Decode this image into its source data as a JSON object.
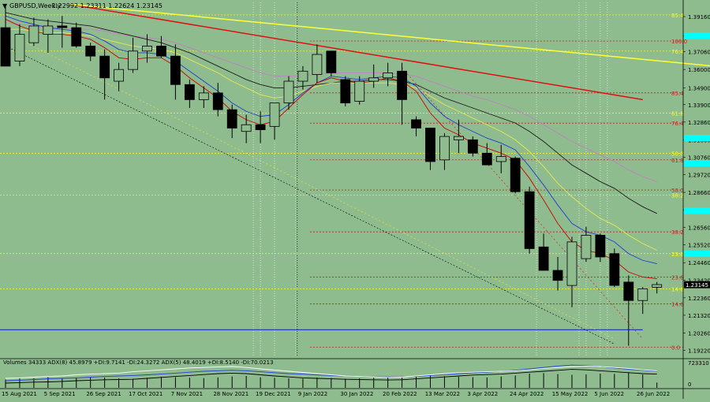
{
  "header": {
    "symbol_label": "GBPUSD,Weekly",
    "ohlc_label": "1.22992 1.23311 1.22624 1.23145"
  },
  "volume_header": "Volumes 34333  ADX(8) 45.8979 +DI:9.7141 -DI:24.3272  ADX(5) 48.4019 +DI:8.5140 -DI:70.0213",
  "colors": {
    "background": "#8fbc8f",
    "bull_candle": "#8fbc8f",
    "bear_candle": "#000000",
    "ma_red": "#cc0000",
    "ma_blue": "#1f3fd0",
    "ma_yellow": "#e8e84a",
    "ma_black": "#1a1a1a",
    "ma_violet": "#c080c0",
    "trend_red": "#dd1111",
    "trend_yellow": "#ffff33",
    "support_blue": "#1f3fbf",
    "fib_label_red": "#cc2222",
    "fib_label_yellow": "#ffff00",
    "current_price_bg": "#000000",
    "axis_highlight": "#00ffff"
  },
  "chart_data": {
    "type": "candlestick",
    "timeframe": "Weekly",
    "ylim": [
      1.1882,
      1.4001
    ],
    "price_axis_ticks": [
      "1.39160",
      "1.38000",
      "1.37060",
      "1.36000",
      "1.34900",
      "1.33900",
      "1.32860",
      "1.31800",
      "1.30760",
      "1.29720",
      "1.28660",
      "1.27620",
      "1.26560",
      "1.25520",
      "1.24460",
      "1.23420",
      "1.22360",
      "1.21320",
      "1.20260",
      "1.19220"
    ],
    "x_axis_labels": [
      "15 Aug 2021",
      "5 Sep 2021",
      "26 Sep 2021",
      "17 Oct 2021",
      "7 Nov 2021",
      "28 Nov 2021",
      "19 Dec 2021",
      "9 Jan 2022",
      "30 Jan 2022",
      "20 Feb 2022",
      "13 Mar 2022",
      "3 Apr 2022",
      "24 Apr 2022",
      "15 May 2022",
      "5 Jun 2022",
      "26 Jun 2022"
    ],
    "current_price": "1.23145",
    "candles": [
      {
        "o": 1.385,
        "h": 1.398,
        "l": 1.362,
        "c": 1.362
      },
      {
        "o": 1.365,
        "h": 1.387,
        "l": 1.362,
        "c": 1.381
      },
      {
        "o": 1.376,
        "h": 1.391,
        "l": 1.374,
        "c": 1.386
      },
      {
        "o": 1.381,
        "h": 1.39,
        "l": 1.37,
        "c": 1.386
      },
      {
        "o": 1.386,
        "h": 1.392,
        "l": 1.373,
        "c": 1.385
      },
      {
        "o": 1.385,
        "h": 1.388,
        "l": 1.373,
        "c": 1.374
      },
      {
        "o": 1.374,
        "h": 1.376,
        "l": 1.365,
        "c": 1.368
      },
      {
        "o": 1.368,
        "h": 1.372,
        "l": 1.342,
        "c": 1.355
      },
      {
        "o": 1.353,
        "h": 1.364,
        "l": 1.347,
        "c": 1.36
      },
      {
        "o": 1.36,
        "h": 1.379,
        "l": 1.358,
        "c": 1.371
      },
      {
        "o": 1.371,
        "h": 1.381,
        "l": 1.364,
        "c": 1.374
      },
      {
        "o": 1.374,
        "h": 1.38,
        "l": 1.367,
        "c": 1.368
      },
      {
        "o": 1.368,
        "h": 1.375,
        "l": 1.342,
        "c": 1.351
      },
      {
        "o": 1.351,
        "h": 1.354,
        "l": 1.337,
        "c": 1.342
      },
      {
        "o": 1.342,
        "h": 1.35,
        "l": 1.337,
        "c": 1.346
      },
      {
        "o": 1.346,
        "h": 1.352,
        "l": 1.332,
        "c": 1.336
      },
      {
        "o": 1.336,
        "h": 1.339,
        "l": 1.319,
        "c": 1.325
      },
      {
        "o": 1.323,
        "h": 1.333,
        "l": 1.316,
        "c": 1.327
      },
      {
        "o": 1.327,
        "h": 1.335,
        "l": 1.316,
        "c": 1.324
      },
      {
        "o": 1.326,
        "h": 1.34,
        "l": 1.318,
        "c": 1.34
      },
      {
        "o": 1.34,
        "h": 1.356,
        "l": 1.336,
        "c": 1.353
      },
      {
        "o": 1.353,
        "h": 1.362,
        "l": 1.348,
        "c": 1.359
      },
      {
        "o": 1.357,
        "h": 1.375,
        "l": 1.352,
        "c": 1.369
      },
      {
        "o": 1.371,
        "h": 1.37,
        "l": 1.356,
        "c": 1.358
      },
      {
        "o": 1.354,
        "h": 1.356,
        "l": 1.338,
        "c": 1.34
      },
      {
        "o": 1.341,
        "h": 1.356,
        "l": 1.339,
        "c": 1.353
      },
      {
        "o": 1.353,
        "h": 1.363,
        "l": 1.349,
        "c": 1.355
      },
      {
        "o": 1.355,
        "h": 1.364,
        "l": 1.35,
        "c": 1.358
      },
      {
        "o": 1.359,
        "h": 1.364,
        "l": 1.327,
        "c": 1.342
      },
      {
        "o": 1.33,
        "h": 1.332,
        "l": 1.32,
        "c": 1.325
      },
      {
        "o": 1.325,
        "h": 1.325,
        "l": 1.3,
        "c": 1.305
      },
      {
        "o": 1.306,
        "h": 1.322,
        "l": 1.3,
        "c": 1.32
      },
      {
        "o": 1.318,
        "h": 1.33,
        "l": 1.31,
        "c": 1.32
      },
      {
        "o": 1.318,
        "h": 1.32,
        "l": 1.308,
        "c": 1.31
      },
      {
        "o": 1.31,
        "h": 1.316,
        "l": 1.303,
        "c": 1.303
      },
      {
        "o": 1.305,
        "h": 1.315,
        "l": 1.298,
        "c": 1.308
      },
      {
        "o": 1.307,
        "h": 1.308,
        "l": 1.286,
        "c": 1.287
      },
      {
        "o": 1.287,
        "h": 1.29,
        "l": 1.25,
        "c": 1.253
      },
      {
        "o": 1.254,
        "h": 1.262,
        "l": 1.24,
        "c": 1.24
      },
      {
        "o": 1.24,
        "h": 1.248,
        "l": 1.228,
        "c": 1.234
      },
      {
        "o": 1.231,
        "h": 1.26,
        "l": 1.218,
        "c": 1.257
      },
      {
        "o": 1.247,
        "h": 1.266,
        "l": 1.245,
        "c": 1.261
      },
      {
        "o": 1.261,
        "h": 1.262,
        "l": 1.245,
        "c": 1.248
      },
      {
        "o": 1.25,
        "h": 1.253,
        "l": 1.23,
        "c": 1.231
      },
      {
        "o": 1.233,
        "h": 1.237,
        "l": 1.195,
        "c": 1.222
      },
      {
        "o": 1.222,
        "h": 1.23,
        "l": 1.214,
        "c": 1.229
      },
      {
        "o": 1.2299,
        "h": 1.2331,
        "l": 1.2262,
        "c": 1.2315
      }
    ],
    "ma_red": [
      1.39,
      1.386,
      1.383,
      1.381,
      1.381,
      1.38,
      1.378,
      1.373,
      1.367,
      1.366,
      1.367,
      1.367,
      1.362,
      1.355,
      1.349,
      1.343,
      1.335,
      1.33,
      1.327,
      1.329,
      1.337,
      1.345,
      1.352,
      1.355,
      1.353,
      1.352,
      1.353,
      1.355,
      1.353,
      1.347,
      1.334,
      1.325,
      1.321,
      1.316,
      1.313,
      1.31,
      1.306,
      1.295,
      1.282,
      1.268,
      1.257,
      1.252,
      1.25,
      1.246,
      1.239,
      1.236,
      1.235
    ],
    "ma_blue": [
      1.392,
      1.389,
      1.387,
      1.385,
      1.384,
      1.383,
      1.381,
      1.377,
      1.372,
      1.37,
      1.37,
      1.369,
      1.365,
      1.359,
      1.353,
      1.347,
      1.34,
      1.335,
      1.332,
      1.333,
      1.339,
      1.346,
      1.352,
      1.356,
      1.355,
      1.354,
      1.355,
      1.356,
      1.355,
      1.35,
      1.34,
      1.332,
      1.327,
      1.323,
      1.319,
      1.316,
      1.312,
      1.302,
      1.291,
      1.279,
      1.268,
      1.263,
      1.261,
      1.257,
      1.25,
      1.246,
      1.244
    ],
    "ma_yellow": [
      1.384,
      1.384,
      1.383,
      1.382,
      1.382,
      1.381,
      1.38,
      1.378,
      1.376,
      1.374,
      1.373,
      1.372,
      1.37,
      1.366,
      1.362,
      1.358,
      1.353,
      1.349,
      1.345,
      1.343,
      1.344,
      1.347,
      1.35,
      1.352,
      1.352,
      1.352,
      1.352,
      1.352,
      1.351,
      1.349,
      1.344,
      1.339,
      1.335,
      1.331,
      1.327,
      1.323,
      1.318,
      1.311,
      1.302,
      1.292,
      1.284,
      1.277,
      1.271,
      1.267,
      1.261,
      1.256,
      1.252
    ],
    "ma_black": [
      1.394,
      1.392,
      1.39,
      1.389,
      1.388,
      1.387,
      1.386,
      1.384,
      1.382,
      1.38,
      1.378,
      1.376,
      1.373,
      1.37,
      1.366,
      1.362,
      1.358,
      1.354,
      1.351,
      1.349,
      1.349,
      1.35,
      1.351,
      1.352,
      1.353,
      1.353,
      1.354,
      1.354,
      1.353,
      1.351,
      1.347,
      1.343,
      1.34,
      1.337,
      1.334,
      1.331,
      1.328,
      1.323,
      1.317,
      1.31,
      1.303,
      1.298,
      1.293,
      1.289,
      1.283,
      1.278,
      1.274
    ],
    "ma_violet": [
      1.388,
      1.387,
      1.386,
      1.385,
      1.385,
      1.384,
      1.384,
      1.383,
      1.381,
      1.38,
      1.379,
      1.378,
      1.376,
      1.373,
      1.37,
      1.367,
      1.364,
      1.361,
      1.358,
      1.356,
      1.356,
      1.356,
      1.357,
      1.358,
      1.358,
      1.358,
      1.358,
      1.358,
      1.357,
      1.356,
      1.353,
      1.35,
      1.347,
      1.344,
      1.342,
      1.339,
      1.336,
      1.332,
      1.327,
      1.322,
      1.317,
      1.313,
      1.309,
      1.305,
      1.3,
      1.296,
      1.293
    ],
    "trend_lines": [
      {
        "color": "red",
        "x1": 4.5,
        "y1": 1.399,
        "x2": 45,
        "y2": 1.342
      },
      {
        "color": "yellow",
        "x1": 4.5,
        "y1": 1.399,
        "x2": 50,
        "y2": 1.362
      }
    ],
    "support_line": 1.2045,
    "fib_levels": [
      {
        "label": "85.4",
        "price": 1.3926,
        "color": "yellow"
      },
      {
        "label": "100.0",
        "price": 1.377,
        "color": "red"
      },
      {
        "label": "76.4",
        "price": 1.371,
        "color": "yellow"
      },
      {
        "label": "85.4",
        "price": 1.346,
        "color": "red"
      },
      {
        "label": "61.8",
        "price": 1.334,
        "color": "yellow"
      },
      {
        "label": "76.4",
        "price": 1.328,
        "color": "red"
      },
      {
        "label": "50.0",
        "price": 1.31,
        "color": "yellow"
      },
      {
        "label": "61.8",
        "price": 1.306,
        "color": "red"
      },
      {
        "label": "50.0",
        "price": 1.288,
        "color": "red"
      },
      {
        "label": "38.2",
        "price": 1.285,
        "color": "yellow"
      },
      {
        "label": "38.2",
        "price": 1.263,
        "color": "red"
      },
      {
        "label": "23.6",
        "price": 1.25,
        "color": "yellow"
      },
      {
        "label": "23.6",
        "price": 1.236,
        "color": "red"
      },
      {
        "label": "14.6",
        "price": 1.229,
        "color": "yellow"
      },
      {
        "label": "14.6",
        "price": 1.22,
        "color": "red"
      },
      {
        "label": "0.0",
        "price": 1.194,
        "color": "red"
      }
    ],
    "volume_axis_ticks": [
      "723310",
      "0"
    ],
    "volume_values": [
      0.35,
      0.42,
      0.4,
      0.45,
      0.41,
      0.43,
      0.46,
      0.44,
      0.4,
      0.38,
      0.42,
      0.47,
      0.45,
      0.43,
      0.41,
      0.44,
      0.48,
      0.5,
      0.45,
      0.42,
      0.4,
      0.39,
      0.43,
      0.41,
      0.38,
      0.4,
      0.42,
      0.44,
      0.46,
      0.5,
      0.53,
      0.49,
      0.47,
      0.45,
      0.44,
      0.48,
      0.52,
      0.6,
      0.62,
      0.58,
      0.55,
      0.57,
      0.6,
      0.59,
      0.66,
      0.56,
      0.22
    ],
    "adx_main": [
      0.4,
      0.42,
      0.45,
      0.48,
      0.5,
      0.55,
      0.58,
      0.6,
      0.62,
      0.68,
      0.72,
      0.76,
      0.8,
      0.84,
      0.86,
      0.88,
      0.9,
      0.86,
      0.8,
      0.75,
      0.7,
      0.65,
      0.6,
      0.55,
      0.5,
      0.48,
      0.46,
      0.44,
      0.45,
      0.5,
      0.55,
      0.6,
      0.64,
      0.66,
      0.68,
      0.7,
      0.72,
      0.76,
      0.82,
      0.86,
      0.9,
      0.92,
      0.9,
      0.86,
      0.82,
      0.76,
      0.72
    ],
    "adx_plus": [
      0.3,
      0.32,
      0.35,
      0.38,
      0.4,
      0.42,
      0.45,
      0.48,
      0.5,
      0.52,
      0.55,
      0.58,
      0.62,
      0.66,
      0.7,
      0.72,
      0.74,
      0.72,
      0.68,
      0.64,
      0.6,
      0.58,
      0.55,
      0.52,
      0.5,
      0.48,
      0.47,
      0.46,
      0.46,
      0.48,
      0.52,
      0.56,
      0.6,
      0.63,
      0.66,
      0.7,
      0.74,
      0.8,
      0.86,
      0.92,
      0.96,
      0.94,
      0.9,
      0.84,
      0.78,
      0.74,
      0.7
    ],
    "adx_minus": [
      0.2,
      0.22,
      0.24,
      0.25,
      0.27,
      0.3,
      0.32,
      0.34,
      0.35,
      0.36,
      0.4,
      0.44,
      0.48,
      0.52,
      0.56,
      0.6,
      0.62,
      0.6,
      0.55,
      0.5,
      0.46,
      0.42,
      0.4,
      0.38,
      0.36,
      0.35,
      0.34,
      0.33,
      0.34,
      0.38,
      0.42,
      0.46,
      0.5,
      0.54,
      0.56,
      0.58,
      0.62,
      0.66,
      0.7,
      0.74,
      0.78,
      0.76,
      0.72,
      0.68,
      0.64,
      0.6,
      0.58
    ]
  }
}
